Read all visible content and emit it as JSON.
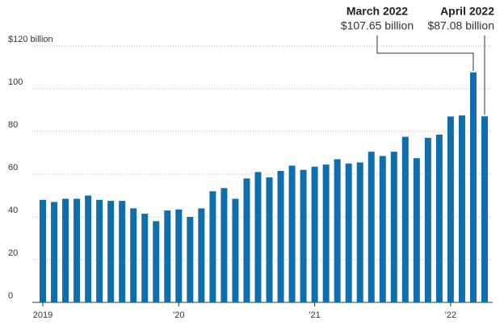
{
  "chart_data": {
    "type": "bar",
    "categories": [
      "2019",
      null,
      null,
      null,
      null,
      null,
      null,
      null,
      null,
      null,
      null,
      null,
      "'20",
      null,
      null,
      null,
      null,
      null,
      null,
      null,
      null,
      null,
      null,
      null,
      "'21",
      null,
      null,
      null,
      null,
      null,
      null,
      null,
      null,
      null,
      null,
      null,
      "'22",
      null,
      null,
      null
    ],
    "values": [
      48,
      47,
      48.5,
      48.5,
      50,
      48,
      47.5,
      47.5,
      44,
      41.5,
      38,
      43,
      43.5,
      40,
      44,
      52,
      53.5,
      48.5,
      58,
      61,
      58.5,
      61.5,
      64,
      62,
      63.5,
      64.5,
      67,
      65,
      65.5,
      70.5,
      68.5,
      70.5,
      77.5,
      67.5,
      77,
      78.5,
      87,
      87.5,
      107.65,
      87.08
    ],
    "value_labels": [
      null,
      null,
      null,
      null,
      null,
      null,
      null,
      null,
      null,
      null,
      null,
      null,
      null,
      null,
      null,
      null,
      null,
      null,
      null,
      null,
      null,
      null,
      null,
      null,
      null,
      null,
      null,
      null,
      null,
      null,
      null,
      null,
      null,
      null,
      null,
      null,
      null,
      null,
      "$107.65 billion",
      "$87.08 billion"
    ],
    "callouts": [
      null,
      null,
      null,
      null,
      null,
      null,
      null,
      null,
      null,
      null,
      null,
      null,
      null,
      null,
      null,
      null,
      null,
      null,
      null,
      null,
      null,
      null,
      null,
      null,
      null,
      null,
      null,
      null,
      null,
      null,
      null,
      null,
      null,
      null,
      null,
      null,
      null,
      null,
      "March 2022",
      "April 2022"
    ],
    "color": "#0f6fad",
    "ylim": [
      0,
      120
    ],
    "yticks": [
      0,
      20,
      40,
      60,
      80,
      100,
      {
        "value": 120,
        "label": "$120 billion"
      }
    ],
    "grid": true
  }
}
